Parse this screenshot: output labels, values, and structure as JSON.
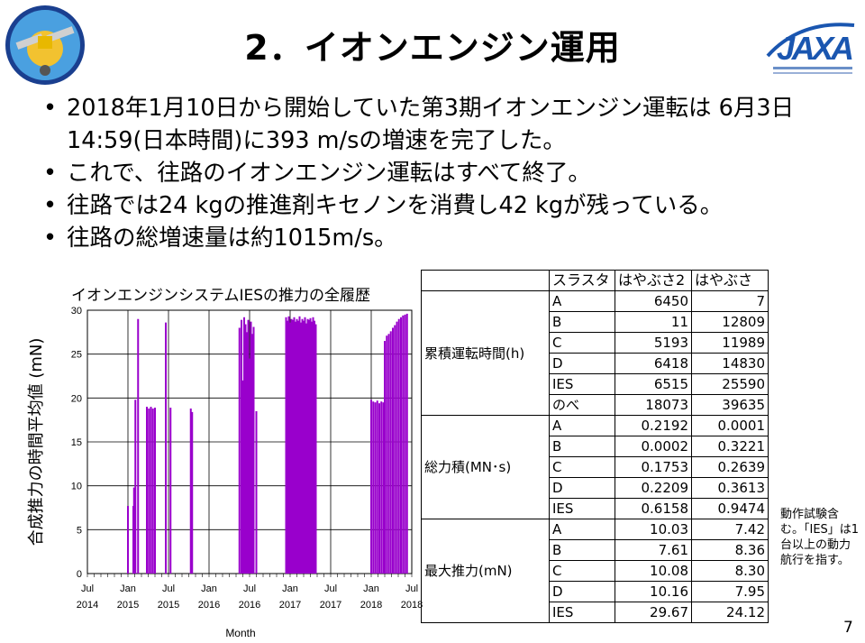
{
  "slide": {
    "title": "2．イオンエンジン運用",
    "bullets": [
      "2018年1月10日から開始していた第3期イオンエンジン運転は 6月3日 14:59(日本時間)に393 m/sの増速を完了した。",
      "これで、往路のイオンエンジン運転はすべて終了。",
      "往路では24 kgの推進剤キセノンを消費し42 kgが残っている。",
      "往路の総増速量は約1015m/s。"
    ],
    "note": "動作試験含む。「IES」は1台以上の動力航行を指す。",
    "page_number": "7",
    "jaxa_logo_text": "JAXA"
  },
  "table": {
    "header": [
      "スラスタ",
      "はやぶさ2",
      "はやぶさ"
    ],
    "groups": [
      {
        "label": "累積運転時間(h)",
        "rows": [
          [
            "A",
            "6450",
            "7"
          ],
          [
            "B",
            "11",
            "12809"
          ],
          [
            "C",
            "5193",
            "11989"
          ],
          [
            "D",
            "6418",
            "14830"
          ],
          [
            "IES",
            "6515",
            "25590"
          ],
          [
            "のべ",
            "18073",
            "39635"
          ]
        ]
      },
      {
        "label": "総力積(MN･s)",
        "rows": [
          [
            "A",
            "0.2192",
            "0.0001"
          ],
          [
            "B",
            "0.0002",
            "0.3221"
          ],
          [
            "C",
            "0.1753",
            "0.2639"
          ],
          [
            "D",
            "0.2209",
            "0.3613"
          ],
          [
            "IES",
            "0.6158",
            "0.9474"
          ]
        ]
      },
      {
        "label": "最大推力(mN)",
        "rows": [
          [
            "A",
            "10.03",
            "7.42"
          ],
          [
            "B",
            "7.61",
            "8.36"
          ],
          [
            "C",
            "10.08",
            "8.30"
          ],
          [
            "D",
            "10.16",
            "7.95"
          ],
          [
            "IES",
            "29.67",
            "24.12"
          ]
        ]
      }
    ]
  },
  "chart_data": {
    "type": "bar",
    "title": "イオンエンジンシステムIESの推力の全履歴",
    "xlabel": "Month",
    "ylabel": "合成推力の時間平均値 (mN)",
    "ylim": [
      0,
      30
    ],
    "yticks": [
      "0",
      "5",
      "10",
      "15",
      "20",
      "25",
      "30"
    ],
    "xticks": [
      [
        "Jul",
        "2014"
      ],
      [
        "Jan",
        "2015"
      ],
      [
        "Jul",
        "2015"
      ],
      [
        "Jan",
        "2016"
      ],
      [
        "Jul",
        "2016"
      ],
      [
        "Jan",
        "2017"
      ],
      [
        "Jul",
        "2017"
      ],
      [
        "Jan",
        "2018"
      ],
      [
        "Jul",
        "2018"
      ]
    ],
    "x_unit": "months since Jul 2014",
    "xlim": [
      0,
      48
    ],
    "grid": true,
    "color": "#9900cc",
    "series": [
      {
        "x": [
          6.0,
          6.8
        ],
        "values": [
          7.7,
          7.7
        ]
      },
      {
        "x": [
          6.9
        ],
        "values": [
          9.8
        ]
      },
      {
        "x": [
          7.1
        ],
        "values": [
          19.8
        ]
      },
      {
        "x": [
          7.5
        ],
        "values": [
          29.0
        ]
      },
      {
        "x": [
          8.8,
          9.1,
          9.4,
          9.7,
          10.0
        ],
        "values": [
          19.0,
          18.8,
          19.0,
          18.8,
          18.9
        ]
      },
      {
        "x": [
          11.6
        ],
        "values": [
          28.6
        ]
      },
      {
        "x": [
          12.3
        ],
        "values": [
          18.9
        ]
      },
      {
        "x": [
          15.3,
          15.5
        ],
        "values": [
          18.8,
          18.4
        ]
      },
      {
        "x": [
          22.5,
          22.8,
          23.0,
          23.2,
          23.4,
          23.6,
          23.8,
          24.0,
          24.2,
          24.4,
          24.6
        ],
        "values": [
          28.0,
          28.9,
          22.0,
          29.2,
          28.4,
          27.5,
          28.9,
          24.5,
          28.7,
          27.3,
          28.1
        ]
      },
      {
        "x": [
          25.0
        ],
        "values": [
          18.5
        ]
      },
      {
        "x": [
          29.4,
          29.6,
          29.8,
          30.0,
          30.2,
          30.4,
          30.6,
          30.8,
          31.0,
          31.2,
          31.4,
          31.6,
          31.8,
          32.0,
          32.2,
          32.4,
          32.6,
          32.8,
          33.0,
          33.2,
          33.4,
          33.6,
          33.8
        ],
        "values": [
          29.2,
          28.8,
          29.3,
          28.6,
          29.0,
          28.9,
          29.2,
          28.7,
          29.0,
          28.8,
          29.3,
          28.6,
          29.0,
          28.8,
          29.2,
          28.5,
          29.0,
          28.9,
          29.1,
          28.7,
          29.2,
          28.8,
          28.4
        ]
      },
      {
        "x": [
          42.0,
          42.3,
          42.6,
          42.9,
          43.2,
          43.5,
          43.8
        ],
        "values": [
          19.8,
          19.6,
          19.5,
          19.7,
          19.4,
          19.6,
          19.5
        ]
      },
      {
        "x": [
          44.0,
          44.3,
          44.6,
          44.9,
          45.2,
          45.5,
          45.8,
          46.1,
          46.4,
          46.7,
          47.0,
          47.3
        ],
        "values": [
          26.5,
          27.1,
          27.3,
          27.6,
          28.0,
          28.3,
          28.7,
          29.0,
          29.2,
          29.4,
          29.5,
          29.6
        ]
      }
    ]
  }
}
